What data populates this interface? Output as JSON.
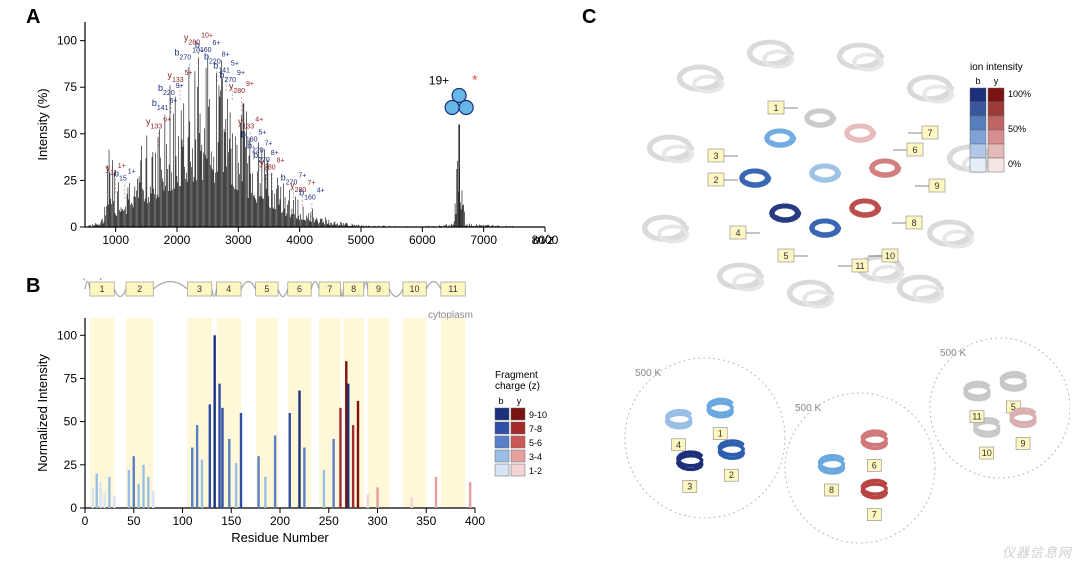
{
  "labels": {
    "A": "A",
    "B": "B",
    "C": "C"
  },
  "colors": {
    "b_dark": "#1c2f7a",
    "b_light": "#9abfe6",
    "y_dark": "#8b1a1a",
    "y_light": "#e6a8a8",
    "star": "#e74c3c",
    "precursor_fill": "#67b7e6",
    "precursor_stroke": "#1c2f7a",
    "tm_band": "#fdf3b8",
    "tm_box": "#fff7c2",
    "periplasm": "#888",
    "cytoplasm": "#888",
    "ribbon_gray": "#d8d8d8"
  },
  "panelA": {
    "x_title": "m/z",
    "y_title": "Intensity (%)",
    "xlim": [
      500,
      8000
    ],
    "ylim": [
      0,
      110
    ],
    "xticks": [
      1000,
      2000,
      3000,
      4000,
      5000,
      6000,
      7000,
      8000
    ],
    "yticks": [
      0,
      25,
      50,
      75,
      100
    ],
    "precursor": {
      "mz": 6600,
      "label": "19+",
      "star": "*"
    },
    "peak_labels": [
      {
        "t": "y",
        "sub": "11",
        "sup": "1+",
        "mz": 1000,
        "y": 30
      },
      {
        "t": "b",
        "sub": "15",
        "sup": "1+",
        "mz": 1150,
        "y": 27
      },
      {
        "t": "y",
        "sub": "133",
        "sup": "6+",
        "mz": 1700,
        "y": 55
      },
      {
        "t": "b",
        "sub": "141",
        "sup": "6+",
        "mz": 1800,
        "y": 65
      },
      {
        "t": "b",
        "sub": "220",
        "sup": "9+",
        "mz": 1900,
        "y": 73
      },
      {
        "t": "y",
        "sub": "133",
        "sup": "5+",
        "mz": 2050,
        "y": 80
      },
      {
        "t": "b",
        "sub": "270",
        "sup": "10+",
        "mz": 2200,
        "y": 92
      },
      {
        "t": "y",
        "sub": "280",
        "sup": "10+",
        "mz": 2350,
        "y": 100
      },
      {
        "t": "b",
        "sub": "160",
        "sup": "6+",
        "mz": 2500,
        "y": 96
      },
      {
        "t": "b",
        "sub": "220",
        "sup": "8+",
        "mz": 2650,
        "y": 90
      },
      {
        "t": "b",
        "sub": "141",
        "sup": "5+",
        "mz": 2800,
        "y": 85
      },
      {
        "t": "b",
        "sub": "270",
        "sup": "9+",
        "mz": 2900,
        "y": 80
      },
      {
        "t": "y",
        "sub": "280",
        "sup": "9+",
        "mz": 3050,
        "y": 74
      },
      {
        "t": "y",
        "sub": "133",
        "sup": "4+",
        "mz": 3200,
        "y": 55
      },
      {
        "t": "b",
        "sub": "160",
        "sup": "5+",
        "mz": 3250,
        "y": 48
      },
      {
        "t": "b",
        "sub": "220",
        "sup": "7+",
        "mz": 3350,
        "y": 42
      },
      {
        "t": "b",
        "sub": "270",
        "sup": "8+",
        "mz": 3450,
        "y": 37
      },
      {
        "t": "y",
        "sub": "280",
        "sup": "8+",
        "mz": 3550,
        "y": 33
      },
      {
        "t": "b",
        "sub": "270",
        "sup": "7+",
        "mz": 3900,
        "y": 25
      },
      {
        "t": "y",
        "sub": "280",
        "sup": "7+",
        "mz": 4050,
        "y": 21
      },
      {
        "t": "b",
        "sub": "160",
        "sup": "4+",
        "mz": 4200,
        "y": 17
      }
    ],
    "spectrum_envelope": [
      [
        500,
        0
      ],
      [
        800,
        5
      ],
      [
        900,
        60
      ],
      [
        1000,
        20
      ],
      [
        1100,
        35
      ],
      [
        1200,
        25
      ],
      [
        1400,
        45
      ],
      [
        1600,
        55
      ],
      [
        1800,
        70
      ],
      [
        2000,
        85
      ],
      [
        2200,
        95
      ],
      [
        2400,
        100
      ],
      [
        2600,
        95
      ],
      [
        2800,
        90
      ],
      [
        3000,
        78
      ],
      [
        3200,
        58
      ],
      [
        3400,
        45
      ],
      [
        3600,
        30
      ],
      [
        3800,
        22
      ],
      [
        4000,
        15
      ],
      [
        4200,
        10
      ],
      [
        4500,
        4
      ],
      [
        5000,
        1
      ],
      [
        6000,
        0.5
      ],
      [
        6500,
        2
      ],
      [
        6600,
        55
      ],
      [
        6700,
        2
      ],
      [
        7500,
        0.5
      ],
      [
        8000,
        0
      ]
    ]
  },
  "panelB": {
    "x_title": "Residue Number",
    "y_title": "Normalized Intensity",
    "periplasm": "periplasm",
    "cytoplasm": "cytoplasm",
    "xlim": [
      0,
      400
    ],
    "ylim": [
      0,
      110
    ],
    "xticks": [
      0,
      50,
      100,
      150,
      200,
      250,
      300,
      350,
      400
    ],
    "yticks": [
      0,
      25,
      50,
      75,
      100
    ],
    "tm_regions": [
      {
        "n": "1",
        "s": 5,
        "e": 30
      },
      {
        "n": "2",
        "s": 42,
        "e": 70
      },
      {
        "n": "3",
        "s": 105,
        "e": 130
      },
      {
        "n": "4",
        "s": 135,
        "e": 160
      },
      {
        "n": "5",
        "s": 175,
        "e": 198
      },
      {
        "n": "6",
        "s": 208,
        "e": 232
      },
      {
        "n": "7",
        "s": 240,
        "e": 262
      },
      {
        "n": "8",
        "s": 265,
        "e": 286
      },
      {
        "n": "9",
        "s": 290,
        "e": 312
      },
      {
        "n": "10",
        "s": 326,
        "e": 350
      },
      {
        "n": "11",
        "s": 365,
        "e": 390
      }
    ],
    "legend_title": "Fragment\ncharge (z)",
    "legend_cols": [
      "b",
      "y"
    ],
    "legend_rows": [
      {
        "label": "9-10",
        "b": "#1c2f7a",
        "y": "#7a1212"
      },
      {
        "label": "7-8",
        "b": "#2f4fa6",
        "y": "#a52a2a"
      },
      {
        "label": "5-6",
        "b": "#5a7fc9",
        "y": "#cc5858"
      },
      {
        "label": "3-4",
        "b": "#9abfe6",
        "y": "#e6a0a0"
      },
      {
        "label": "1-2",
        "b": "#d6e4f5",
        "y": "#f3d4d4"
      }
    ],
    "bars": [
      {
        "x": 8,
        "h": 12,
        "c": "#d6e4f5"
      },
      {
        "x": 12,
        "h": 20,
        "c": "#9abfe6"
      },
      {
        "x": 16,
        "h": 15,
        "c": "#d6e4f5"
      },
      {
        "x": 20,
        "h": 9,
        "c": "#d6e4f5"
      },
      {
        "x": 25,
        "h": 18,
        "c": "#9abfe6"
      },
      {
        "x": 30,
        "h": 7,
        "c": "#d6e4f5"
      },
      {
        "x": 45,
        "h": 22,
        "c": "#9abfe6"
      },
      {
        "x": 50,
        "h": 30,
        "c": "#5a7fc9"
      },
      {
        "x": 55,
        "h": 14,
        "c": "#9abfe6"
      },
      {
        "x": 60,
        "h": 25,
        "c": "#9abfe6"
      },
      {
        "x": 65,
        "h": 18,
        "c": "#9abfe6"
      },
      {
        "x": 70,
        "h": 10,
        "c": "#d6e4f5"
      },
      {
        "x": 110,
        "h": 35,
        "c": "#5a7fc9"
      },
      {
        "x": 115,
        "h": 48,
        "c": "#5a7fc9"
      },
      {
        "x": 120,
        "h": 28,
        "c": "#9abfe6"
      },
      {
        "x": 128,
        "h": 60,
        "c": "#2f4fa6"
      },
      {
        "x": 133,
        "h": 100,
        "c": "#1c2f7a"
      },
      {
        "x": 138,
        "h": 72,
        "c": "#2f4fa6"
      },
      {
        "x": 141,
        "h": 58,
        "c": "#2f4fa6"
      },
      {
        "x": 148,
        "h": 40,
        "c": "#5a7fc9"
      },
      {
        "x": 155,
        "h": 26,
        "c": "#9abfe6"
      },
      {
        "x": 160,
        "h": 55,
        "c": "#2f4fa6"
      },
      {
        "x": 178,
        "h": 30,
        "c": "#5a7fc9"
      },
      {
        "x": 185,
        "h": 18,
        "c": "#9abfe6"
      },
      {
        "x": 195,
        "h": 42,
        "c": "#5a7fc9"
      },
      {
        "x": 210,
        "h": 55,
        "c": "#2f4fa6"
      },
      {
        "x": 220,
        "h": 68,
        "c": "#1c2f7a"
      },
      {
        "x": 225,
        "h": 35,
        "c": "#5a7fc9"
      },
      {
        "x": 245,
        "h": 22,
        "c": "#9abfe6"
      },
      {
        "x": 255,
        "h": 40,
        "c": "#5a7fc9"
      },
      {
        "x": 262,
        "h": 58,
        "c": "#a52a2a"
      },
      {
        "x": 268,
        "h": 85,
        "c": "#7a1212"
      },
      {
        "x": 270,
        "h": 72,
        "c": "#1c2f7a"
      },
      {
        "x": 275,
        "h": 48,
        "c": "#a52a2a"
      },
      {
        "x": 280,
        "h": 62,
        "c": "#7a1212"
      },
      {
        "x": 290,
        "h": 8,
        "c": "#f3d4d4"
      },
      {
        "x": 300,
        "h": 12,
        "c": "#e6a0a0"
      },
      {
        "x": 335,
        "h": 6,
        "c": "#f3d4d4"
      },
      {
        "x": 360,
        "h": 18,
        "c": "#e6a0a0"
      },
      {
        "x": 395,
        "h": 15,
        "c": "#e6a0a0"
      }
    ]
  },
  "panelC": {
    "colorbar_title": "ion intensity",
    "colorbar_cols": [
      "b",
      "y"
    ],
    "colorbar_stops": [
      {
        "p": "100%",
        "b": "#1c2f7a",
        "y": "#7a1212"
      },
      {
        "p": "50%",
        "b": "#6590cf",
        "y": "#d17878"
      },
      {
        "p": "0%",
        "b": "#e6eef8",
        "y": "#f5e6e6"
      }
    ],
    "struct_labels": [
      "1",
      "2",
      "3",
      "4",
      "5",
      "6",
      "7",
      "8",
      "9",
      "10",
      "11"
    ],
    "insets": [
      {
        "label": "500 K",
        "helices": [
          "1",
          "2",
          "3",
          "4"
        ]
      },
      {
        "label": "500 K",
        "helices": [
          "6",
          "7",
          "8"
        ]
      },
      {
        "label": "500 K",
        "helices": [
          "5",
          "9",
          "10",
          "11"
        ]
      }
    ]
  },
  "watermark": "仪器信息网"
}
